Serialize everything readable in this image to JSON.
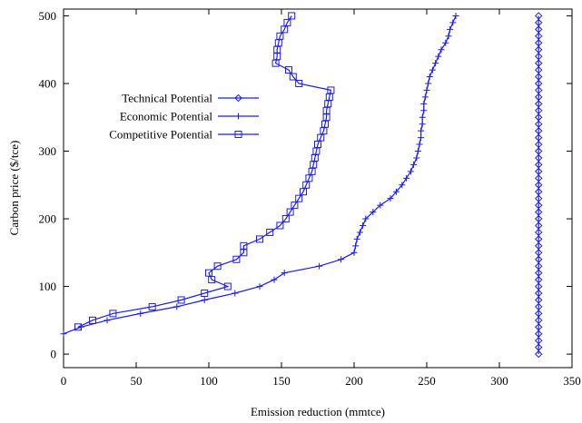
{
  "chart_data": {
    "type": "line",
    "xlabel": "Emission reduction (mmtce)",
    "ylabel": "Carbon price ($/tce)",
    "xlim": [
      0,
      350
    ],
    "ylim": [
      -20,
      510
    ],
    "xticks": [
      0,
      50,
      100,
      150,
      200,
      250,
      300,
      350
    ],
    "yticks": [
      0,
      100,
      200,
      300,
      400,
      500
    ],
    "grid": false,
    "legend_position": "upper-left",
    "series": [
      {
        "name": "Technical Potential",
        "marker": "diamond",
        "points": [
          [
            327,
            0
          ],
          [
            327,
            10
          ],
          [
            327,
            20
          ],
          [
            327,
            30
          ],
          [
            327,
            40
          ],
          [
            327,
            50
          ],
          [
            327,
            60
          ],
          [
            327,
            70
          ],
          [
            327,
            80
          ],
          [
            327,
            90
          ],
          [
            327,
            100
          ],
          [
            327,
            110
          ],
          [
            327,
            120
          ],
          [
            327,
            130
          ],
          [
            327,
            140
          ],
          [
            327,
            150
          ],
          [
            327,
            160
          ],
          [
            327,
            170
          ],
          [
            327,
            180
          ],
          [
            327,
            190
          ],
          [
            327,
            200
          ],
          [
            327,
            210
          ],
          [
            327,
            220
          ],
          [
            327,
            230
          ],
          [
            327,
            240
          ],
          [
            327,
            250
          ],
          [
            327,
            260
          ],
          [
            327,
            270
          ],
          [
            327,
            280
          ],
          [
            327,
            290
          ],
          [
            327,
            300
          ],
          [
            327,
            310
          ],
          [
            327,
            320
          ],
          [
            327,
            330
          ],
          [
            327,
            340
          ],
          [
            327,
            350
          ],
          [
            327,
            360
          ],
          [
            327,
            370
          ],
          [
            327,
            380
          ],
          [
            327,
            390
          ],
          [
            327,
            400
          ],
          [
            327,
            410
          ],
          [
            327,
            420
          ],
          [
            327,
            430
          ],
          [
            327,
            440
          ],
          [
            327,
            450
          ],
          [
            327,
            460
          ],
          [
            327,
            470
          ],
          [
            327,
            480
          ],
          [
            327,
            490
          ],
          [
            327,
            500
          ]
        ]
      },
      {
        "name": "Economic Potential",
        "marker": "plus",
        "points": [
          [
            0,
            30
          ],
          [
            12,
            40
          ],
          [
            30,
            50
          ],
          [
            53,
            60
          ],
          [
            78,
            70
          ],
          [
            97,
            80
          ],
          [
            118,
            90
          ],
          [
            135,
            100
          ],
          [
            145,
            110
          ],
          [
            152,
            120
          ],
          [
            176,
            130
          ],
          [
            191,
            140
          ],
          [
            200,
            150
          ],
          [
            201,
            160
          ],
          [
            202,
            170
          ],
          [
            204,
            180
          ],
          [
            206,
            190
          ],
          [
            208,
            200
          ],
          [
            213,
            210
          ],
          [
            218,
            220
          ],
          [
            225,
            230
          ],
          [
            229,
            240
          ],
          [
            233,
            250
          ],
          [
            236,
            260
          ],
          [
            239,
            270
          ],
          [
            241,
            280
          ],
          [
            243,
            290
          ],
          [
            244,
            300
          ],
          [
            245,
            310
          ],
          [
            246,
            320
          ],
          [
            246,
            330
          ],
          [
            247,
            340
          ],
          [
            247,
            350
          ],
          [
            248,
            360
          ],
          [
            248,
            370
          ],
          [
            249,
            380
          ],
          [
            250,
            390
          ],
          [
            251,
            400
          ],
          [
            252,
            410
          ],
          [
            254,
            420
          ],
          [
            256,
            430
          ],
          [
            258,
            440
          ],
          [
            260,
            450
          ],
          [
            263,
            460
          ],
          [
            265,
            470
          ],
          [
            266,
            480
          ],
          [
            268,
            490
          ],
          [
            270,
            500
          ]
        ]
      },
      {
        "name": "Competitive Potential",
        "marker": "square",
        "points": [
          [
            10,
            40
          ],
          [
            20,
            50
          ],
          [
            34,
            60
          ],
          [
            61,
            70
          ],
          [
            81,
            80
          ],
          [
            97,
            90
          ],
          [
            113,
            100
          ],
          [
            102,
            110
          ],
          [
            100,
            120
          ],
          [
            119,
            140
          ],
          [
            124,
            150
          ],
          [
            124,
            160
          ],
          [
            106,
            130
          ],
          [
            135,
            170
          ],
          [
            142,
            180
          ],
          [
            149,
            190
          ],
          [
            153,
            200
          ],
          [
            156,
            210
          ],
          [
            159,
            220
          ],
          [
            162,
            230
          ],
          [
            165,
            240
          ],
          [
            167,
            250
          ],
          [
            169,
            260
          ],
          [
            171,
            270
          ],
          [
            172,
            280
          ],
          [
            173,
            290
          ],
          [
            174,
            300
          ],
          [
            175,
            310
          ],
          [
            177,
            320
          ],
          [
            179,
            330
          ],
          [
            180,
            340
          ],
          [
            181,
            350
          ],
          [
            181,
            360
          ],
          [
            182,
            370
          ],
          [
            183,
            380
          ],
          [
            184,
            390
          ],
          [
            162,
            400
          ],
          [
            158,
            410
          ],
          [
            155,
            420
          ],
          [
            146,
            430
          ],
          [
            147,
            440
          ],
          [
            147,
            450
          ],
          [
            148,
            460
          ],
          [
            149,
            470
          ],
          [
            152,
            480
          ],
          [
            154,
            490
          ],
          [
            157,
            500
          ]
        ],
        "path_order": [
          [
            10,
            40
          ],
          [
            20,
            50
          ],
          [
            34,
            60
          ],
          [
            61,
            70
          ],
          [
            81,
            80
          ],
          [
            97,
            90
          ],
          [
            113,
            100
          ],
          [
            102,
            110
          ],
          [
            100,
            120
          ],
          [
            106,
            130
          ],
          [
            119,
            140
          ],
          [
            124,
            150
          ],
          [
            124,
            160
          ],
          [
            135,
            170
          ],
          [
            142,
            180
          ],
          [
            149,
            190
          ],
          [
            153,
            200
          ],
          [
            156,
            210
          ],
          [
            159,
            220
          ],
          [
            162,
            230
          ],
          [
            165,
            240
          ],
          [
            167,
            250
          ],
          [
            169,
            260
          ],
          [
            171,
            270
          ],
          [
            172,
            280
          ],
          [
            173,
            290
          ],
          [
            174,
            300
          ],
          [
            175,
            310
          ],
          [
            177,
            320
          ],
          [
            179,
            330
          ],
          [
            180,
            340
          ],
          [
            181,
            350
          ],
          [
            181,
            360
          ],
          [
            182,
            370
          ],
          [
            183,
            380
          ],
          [
            184,
            390
          ],
          [
            162,
            400
          ],
          [
            158,
            410
          ],
          [
            155,
            420
          ],
          [
            146,
            430
          ],
          [
            147,
            440
          ],
          [
            147,
            450
          ],
          [
            148,
            460
          ],
          [
            149,
            470
          ],
          [
            152,
            480
          ],
          [
            154,
            490
          ],
          [
            157,
            500
          ]
        ]
      }
    ],
    "colors": {
      "series": "#1a1aff",
      "axes": "#000000"
    }
  }
}
